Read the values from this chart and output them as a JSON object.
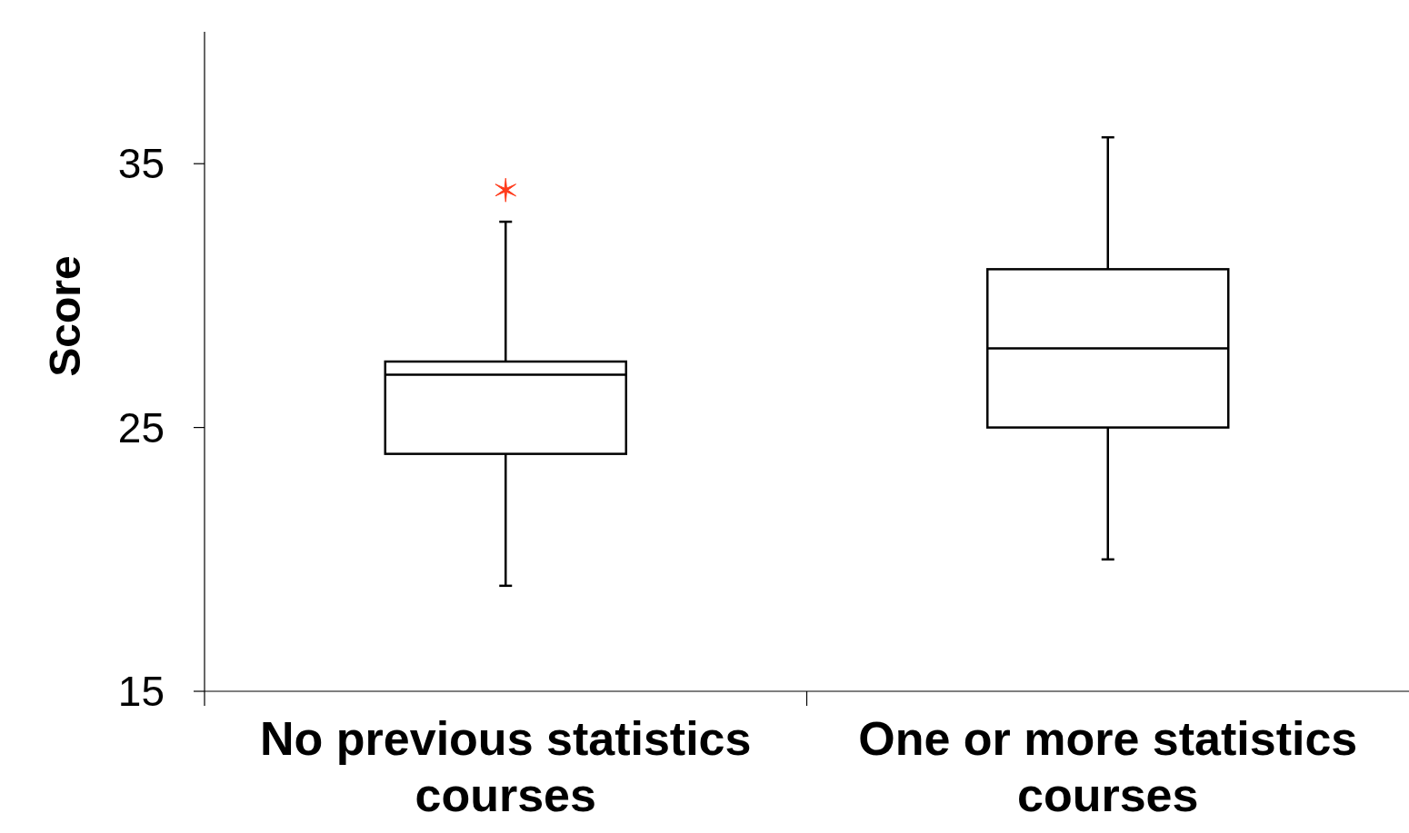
{
  "chart_data": {
    "type": "box",
    "ylabel": "Score",
    "categories": [
      "No previous statistics courses",
      "One or more statistics courses"
    ],
    "ylim": [
      15,
      40
    ],
    "yticks": [
      15,
      25,
      35
    ],
    "grid": false,
    "marker": "cross",
    "series": [
      {
        "color": "#000000",
        "boxes": [
          {
            "low": 19,
            "q1": 24,
            "median": 27,
            "q3": 27.5,
            "high": 32.8
          },
          {
            "low": 20,
            "q1": 25,
            "median": 28,
            "q3": 31,
            "high": 36
          }
        ]
      },
      {
        "type": "scatter",
        "color": "#ff3a1a",
        "x": [
          "No previous statistics courses"
        ],
        "values": [
          34
        ]
      }
    ]
  }
}
